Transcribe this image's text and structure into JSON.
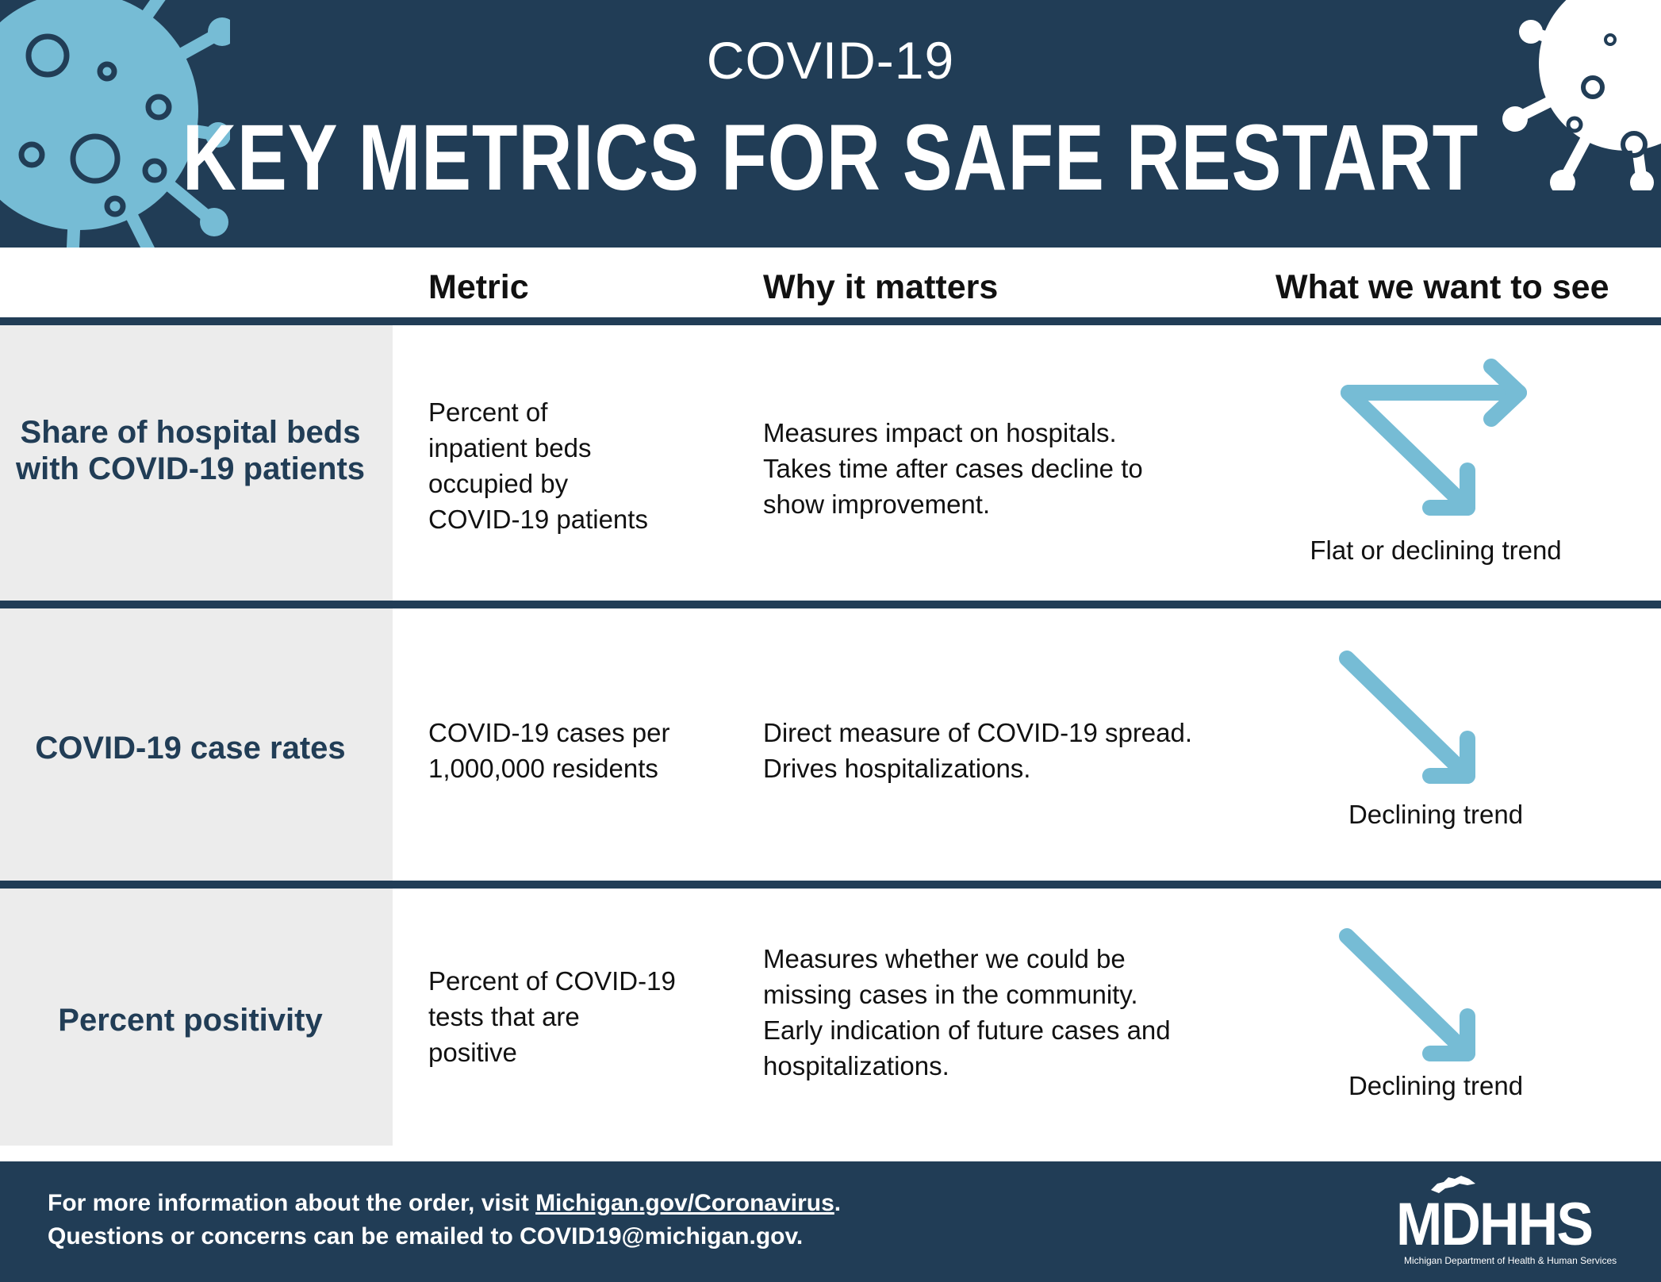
{
  "header": {
    "subtitle": "COVID-19",
    "title": "KEY METRICS FOR SAFE RESTART"
  },
  "columns": {
    "metric": "Metric",
    "why": "Why it matters",
    "want": "What we want to see"
  },
  "rows": [
    {
      "label": "Share of hospital beds with COVID-19 patients",
      "metric": "Percent of\ninpatient beds\noccupied by\nCOVID-19 patients",
      "why": "Measures impact on hospitals.\nTakes time after cases decline to\nshow improvement.",
      "want": "Flat or declining trend",
      "icon": "flat-or-declining-arrow-icon"
    },
    {
      "label": "COVID-19 case rates",
      "metric": "COVID-19 cases per\n1,000,000 residents",
      "why": "Direct measure of COVID-19 spread.\nDrives hospitalizations.",
      "want": "Declining trend",
      "icon": "declining-arrow-icon"
    },
    {
      "label": "Percent positivity",
      "metric": "Percent of COVID-19\ntests that are\npositive",
      "why": "Measures whether we could be\nmissing cases in the community.\nEarly indication of future cases and\nhospitalizations.",
      "want": "Declining trend",
      "icon": "declining-arrow-icon"
    }
  ],
  "footer": {
    "line1_prefix": "For more information about the order, visit ",
    "line1_link": "Michigan.gov/Coronavirus",
    "line1_suffix": ".",
    "line2": "Questions or concerns can be emailed to COVID19@michigan.gov."
  },
  "logo": {
    "text": "MDHHS",
    "subtitle": "Michigan Department of Health & Human Services"
  },
  "colors": {
    "navy": "#213d56",
    "arrow_blue": "#76bcd5",
    "label_bg": "#ececec"
  }
}
